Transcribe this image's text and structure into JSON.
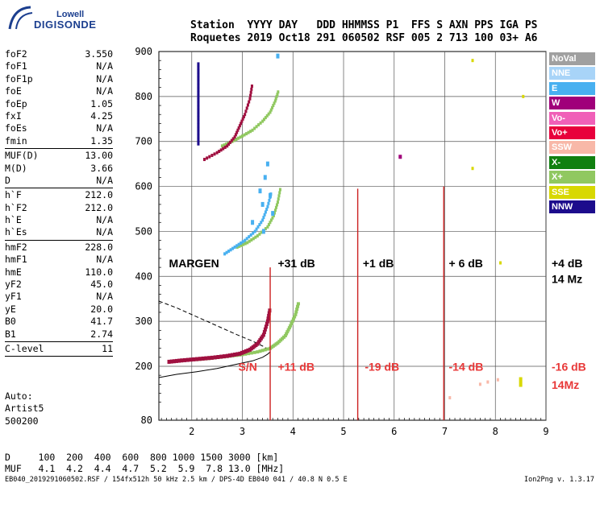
{
  "logo": {
    "top": "Lowell",
    "bottom": "DIGISONDE"
  },
  "header": {
    "line1": "Station  YYYY DAY   DDD HHMMSS P1  FFS S AXN PPS IGA PS",
    "line2": "Roquetes 2019 Oct18 291 060502 RSF 005 2 713 100 03+ A6"
  },
  "params": [
    {
      "label": "foF2",
      "value": "3.550"
    },
    {
      "label": "foF1",
      "value": "N/A"
    },
    {
      "label": "foF1p",
      "value": "N/A"
    },
    {
      "label": "foE",
      "value": "N/A"
    },
    {
      "label": "foEp",
      "value": "1.05"
    },
    {
      "label": "fxI",
      "value": "4.25"
    },
    {
      "label": "foEs",
      "value": "N/A"
    },
    {
      "label": "fmin",
      "value": "1.35",
      "sep": true
    },
    {
      "label": "MUF(D)",
      "value": "13.00"
    },
    {
      "label": "M(D)",
      "value": "3.66"
    },
    {
      "label": "D",
      "value": "N/A",
      "sep": true
    },
    {
      "label": "h`F",
      "value": "212.0"
    },
    {
      "label": "h`F2",
      "value": "212.0"
    },
    {
      "label": "h`E",
      "value": "N/A"
    },
    {
      "label": "h`Es",
      "value": "N/A",
      "sep": true
    },
    {
      "label": "hmF2",
      "value": "228.0"
    },
    {
      "label": "hmF1",
      "value": "N/A"
    },
    {
      "label": "hmE",
      "value": "110.0"
    },
    {
      "label": "yF2",
      "value": "45.0"
    },
    {
      "label": "yF1",
      "value": "N/A"
    },
    {
      "label": "yE",
      "value": "20.0"
    },
    {
      "label": "B0",
      "value": "41.7"
    },
    {
      "label": "B1",
      "value": "2.74",
      "sep": true
    },
    {
      "label": "C-level",
      "value": "11",
      "sep": true
    }
  ],
  "autoscale": {
    "line1": "Auto:",
    "line2": "Artist5",
    "line3": "500200"
  },
  "footer": {
    "d_line": "D     100  200  400  600  800 1000 1500 3000 [km]",
    "muf_line": "MUF   4.1  4.2  4.4  4.7  5.2  5.9  7.8 13.0 [MHz]"
  },
  "fileinfo": "EB040_2019291060502.RSF / 154fx512h 50 kHz 2.5 km / DPS-4D EB040 041 / 40.8 N 0.5 E",
  "version": "Ion2Png v. 1.3.17",
  "legend": [
    {
      "label": "NoVal",
      "color": "#a0a0a0"
    },
    {
      "label": "NNE",
      "color": "#a8d4f8"
    },
    {
      "label": "E",
      "color": "#48b0f0"
    },
    {
      "label": "W",
      "color": "#a0007a"
    },
    {
      "label": "Vo-",
      "color": "#f060b8"
    },
    {
      "label": "Vo+",
      "color": "#e8003c"
    },
    {
      "label": "SSW",
      "color": "#f8b8a8"
    },
    {
      "label": "X-",
      "color": "#108010"
    },
    {
      "label": "X+",
      "color": "#90c860"
    },
    {
      "label": "SSE",
      "color": "#d8d800"
    },
    {
      "label": "NNW",
      "color": "#1c0c8c"
    }
  ],
  "chart_data": {
    "type": "scatter",
    "x_ticks": [
      "2",
      "3",
      "4",
      "5",
      "6",
      "7",
      "8",
      "9"
    ],
    "y_ticks": [
      "80",
      "200",
      "300",
      "400",
      "500",
      "600",
      "700",
      "800",
      "900"
    ],
    "xlim": [
      1.35,
      9.0
    ],
    "ylim": [
      80,
      900
    ],
    "grid": true,
    "annotations": [
      {
        "text": "MARGEN",
        "x": 1.55,
        "y": 420,
        "color": "#000000"
      },
      {
        "text": "+31 dB",
        "x": 3.7,
        "y": 420,
        "color": "#000000"
      },
      {
        "text": "+1 dB",
        "x": 5.38,
        "y": 420,
        "color": "#000000"
      },
      {
        "text": "+ 6 dB",
        "x": 7.08,
        "y": 420,
        "color": "#000000"
      },
      {
        "text": "+4 dB",
        "x": 9.15,
        "y": 420,
        "color": "#000000"
      },
      {
        "text": "14 Mz",
        "x": 9.15,
        "y": 385,
        "color": "#000000"
      },
      {
        "text": "S/N",
        "x": 2.92,
        "y": 190,
        "color": "#e83838"
      },
      {
        "text": "+11 dB",
        "x": 3.7,
        "y": 190,
        "color": "#e83838"
      },
      {
        "text": "-19 dB",
        "x": 5.42,
        "y": 190,
        "color": "#e83838"
      },
      {
        "text": "-14 dB",
        "x": 7.08,
        "y": 190,
        "color": "#e83838"
      },
      {
        "text": "-16 dB",
        "x": 9.15,
        "y": 190,
        "color": "#e83838"
      },
      {
        "text": "14Mz",
        "x": 9.15,
        "y": 150,
        "color": "#e83838"
      }
    ],
    "vlines": [
      {
        "x": 3.55,
        "ymin": 80,
        "ymax": 420
      },
      {
        "x": 5.28,
        "ymin": 80,
        "ymax": 595
      },
      {
        "x": 6.98,
        "ymin": 80,
        "ymax": 600
      }
    ],
    "trace_o_low": {
      "x": [
        1.55,
        1.8,
        2.1,
        2.4,
        2.7,
        2.95,
        3.15,
        3.3,
        3.42,
        3.5,
        3.55
      ],
      "y": [
        210,
        213,
        216,
        219,
        223,
        228,
        237,
        250,
        270,
        300,
        330
      ]
    },
    "trace_x_low": {
      "x": [
        2.1,
        2.4,
        2.7,
        3.0,
        3.3,
        3.55,
        3.7,
        3.85,
        3.95,
        4.05,
        4.12
      ],
      "y": [
        215,
        218,
        222,
        226,
        232,
        240,
        252,
        268,
        290,
        315,
        345
      ]
    },
    "trace_o_high": {
      "x": [
        2.25,
        2.5,
        2.7,
        2.85,
        2.95,
        3.05,
        3.15,
        3.2
      ],
      "y": [
        660,
        675,
        690,
        710,
        735,
        760,
        795,
        830
      ]
    },
    "trace_x_high": {
      "x": [
        2.6,
        2.8,
        3.0,
        3.2,
        3.4,
        3.55,
        3.65,
        3.72
      ],
      "y": [
        690,
        700,
        712,
        725,
        745,
        765,
        790,
        815
      ]
    },
    "trace_o_mid": {
      "x": [
        2.65,
        2.85,
        3.05,
        3.25,
        3.4,
        3.5,
        3.58
      ],
      "y": [
        450,
        465,
        480,
        500,
        525,
        555,
        590
      ]
    },
    "trace_x_mid": {
      "x": [
        2.9,
        3.1,
        3.3,
        3.5,
        3.62,
        3.7,
        3.76
      ],
      "y": [
        465,
        475,
        490,
        510,
        535,
        565,
        600
      ]
    },
    "profile_solid": {
      "x": [
        1.35,
        1.7,
        2.1,
        2.5,
        2.9,
        3.2,
        3.4,
        3.5,
        3.55
      ],
      "y": [
        175,
        182,
        188,
        195,
        205,
        212,
        220,
        227,
        232
      ]
    },
    "profile_dashed": {
      "x": [
        1.35,
        1.7,
        2.1,
        2.5,
        2.9,
        3.2,
        3.4,
        3.55
      ],
      "y": [
        345,
        330,
        310,
        290,
        270,
        256,
        245,
        235
      ]
    }
  }
}
